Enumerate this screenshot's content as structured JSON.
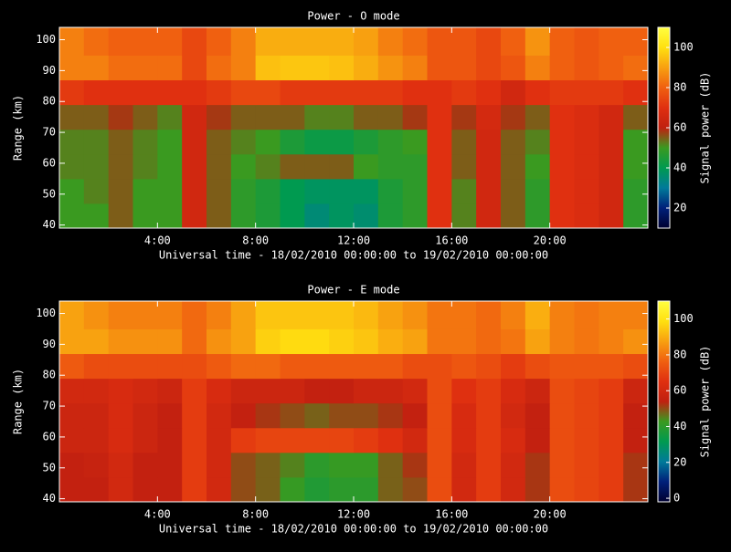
{
  "chart_data": [
    {
      "type": "heatmap",
      "title": "Power - O mode",
      "xlabel": "Universal time - 18/02/2010 00:00:00 to 19/02/2010 00:00:00",
      "ylabel": "Range (km)",
      "zlabel": "Signal power (dB)",
      "x_bins": [
        0,
        1,
        2,
        3,
        4,
        5,
        6,
        7,
        8,
        9,
        10,
        11,
        12,
        13,
        14,
        15,
        16,
        17,
        18,
        19,
        20,
        21,
        22,
        23,
        24
      ],
      "y_bins": [
        39,
        47,
        55,
        63,
        71,
        79,
        87,
        95,
        104
      ],
      "z": [
        [
          50,
          50,
          55,
          50,
          50,
          65,
          55,
          48,
          45,
          40,
          35,
          38,
          36,
          45,
          48,
          70,
          52,
          65,
          55,
          48,
          70,
          68,
          65,
          48
        ],
        [
          50,
          52,
          55,
          50,
          50,
          65,
          55,
          48,
          45,
          40,
          38,
          38,
          38,
          45,
          48,
          70,
          52,
          65,
          55,
          48,
          70,
          68,
          65,
          48
        ],
        [
          52,
          52,
          55,
          52,
          50,
          65,
          55,
          50,
          52,
          55,
          55,
          55,
          50,
          48,
          48,
          70,
          55,
          65,
          55,
          50,
          70,
          68,
          65,
          50
        ],
        [
          52,
          52,
          55,
          52,
          50,
          65,
          55,
          52,
          50,
          45,
          42,
          42,
          45,
          48,
          50,
          70,
          55,
          65,
          55,
          52,
          70,
          68,
          65,
          50
        ],
        [
          55,
          55,
          58,
          55,
          52,
          65,
          58,
          55,
          55,
          55,
          52,
          52,
          55,
          55,
          58,
          70,
          58,
          66,
          58,
          55,
          70,
          68,
          65,
          55
        ],
        [
          72,
          70,
          70,
          70,
          70,
          70,
          72,
          75,
          75,
          72,
          72,
          72,
          72,
          72,
          70,
          70,
          72,
          70,
          65,
          70,
          72,
          72,
          72,
          70
        ],
        [
          85,
          85,
          82,
          82,
          82,
          75,
          82,
          85,
          95,
          96,
          96,
          95,
          92,
          88,
          85,
          78,
          78,
          75,
          78,
          85,
          80,
          78,
          80,
          82
        ],
        [
          85,
          82,
          80,
          80,
          80,
          75,
          80,
          85,
          92,
          92,
          92,
          92,
          90,
          85,
          82,
          78,
          78,
          75,
          80,
          88,
          80,
          78,
          80,
          80
        ]
      ],
      "xlim": [
        0,
        24
      ],
      "xticks": [
        {
          "value": 4,
          "label": "4:00"
        },
        {
          "value": 8,
          "label": "8:00"
        },
        {
          "value": 12,
          "label": "12:00"
        },
        {
          "value": 16,
          "label": "16:00"
        },
        {
          "value": 20,
          "label": "20:00"
        }
      ],
      "ylim": [
        39,
        104
      ],
      "yticks": [
        40,
        50,
        60,
        70,
        80,
        90,
        100
      ],
      "zlim": [
        10,
        110
      ],
      "zticks": [
        20,
        40,
        60,
        80,
        100
      ],
      "colors": [
        "#000030",
        "#00207a",
        "#007a9a",
        "#009a50",
        "#3a9a20",
        "#c02010",
        "#e03010",
        "#f06010",
        "#f8a010",
        "#ffe010",
        "#ffff40"
      ]
    },
    {
      "type": "heatmap",
      "title": "Power - E mode",
      "xlabel": "Universal time - 18/02/2010 00:00:00 to 19/02/2010 00:00:00",
      "ylabel": "Range (km)",
      "zlabel": "Signal power (dB)",
      "x_bins": [
        0,
        1,
        2,
        3,
        4,
        5,
        6,
        7,
        8,
        9,
        10,
        11,
        12,
        13,
        14,
        15,
        16,
        17,
        18,
        19,
        20,
        21,
        22,
        23,
        24
      ],
      "y_bins": [
        39,
        47,
        55,
        63,
        71,
        79,
        87,
        95,
        104
      ],
      "z": [
        [
          55,
          55,
          60,
          55,
          55,
          68,
          60,
          50,
          48,
          42,
          38,
          40,
          40,
          48,
          50,
          72,
          60,
          68,
          60,
          52,
          72,
          70,
          68,
          52
        ],
        [
          55,
          56,
          60,
          55,
          55,
          68,
          60,
          50,
          48,
          45,
          40,
          42,
          42,
          48,
          52,
          72,
          60,
          68,
          60,
          52,
          72,
          70,
          68,
          52
        ],
        [
          58,
          58,
          62,
          58,
          55,
          68,
          60,
          68,
          70,
          70,
          70,
          70,
          68,
          65,
          60,
          72,
          62,
          68,
          62,
          55,
          72,
          70,
          68,
          55
        ],
        [
          58,
          58,
          62,
          58,
          55,
          68,
          60,
          55,
          52,
          50,
          48,
          50,
          50,
          52,
          55,
          72,
          62,
          68,
          60,
          55,
          72,
          70,
          68,
          55
        ],
        [
          60,
          60,
          62,
          60,
          58,
          68,
          62,
          58,
          58,
          58,
          55,
          55,
          58,
          58,
          60,
          72,
          65,
          68,
          62,
          58,
          72,
          70,
          68,
          58
        ],
        [
          75,
          72,
          72,
          72,
          72,
          72,
          75,
          78,
          78,
          75,
          75,
          75,
          75,
          75,
          72,
          72,
          74,
          72,
          68,
          72,
          74,
          74,
          74,
          72
        ],
        [
          88,
          88,
          85,
          85,
          85,
          78,
          85,
          88,
          96,
          98,
          98,
          96,
          94,
          90,
          88,
          80,
          80,
          78,
          80,
          88,
          82,
          80,
          82,
          85
        ],
        [
          88,
          85,
          82,
          82,
          82,
          78,
          82,
          88,
          94,
          94,
          94,
          94,
          92,
          88,
          85,
          80,
          80,
          78,
          82,
          90,
          82,
          80,
          82,
          82
        ]
      ],
      "xlim": [
        0,
        24
      ],
      "xticks": [
        {
          "value": 4,
          "label": "4:00"
        },
        {
          "value": 8,
          "label": "8:00"
        },
        {
          "value": 12,
          "label": "12:00"
        },
        {
          "value": 16,
          "label": "16:00"
        },
        {
          "value": 20,
          "label": "20:00"
        }
      ],
      "ylim": [
        39,
        104
      ],
      "yticks": [
        40,
        50,
        60,
        70,
        80,
        90,
        100
      ],
      "zlim": [
        -2,
        110
      ],
      "zticks": [
        0,
        20,
        40,
        60,
        80,
        100
      ],
      "colors": [
        "#000030",
        "#00207a",
        "#007a9a",
        "#009a50",
        "#3a9a20",
        "#c02010",
        "#e03010",
        "#f06010",
        "#f8a010",
        "#ffe010",
        "#ffff40"
      ]
    }
  ]
}
